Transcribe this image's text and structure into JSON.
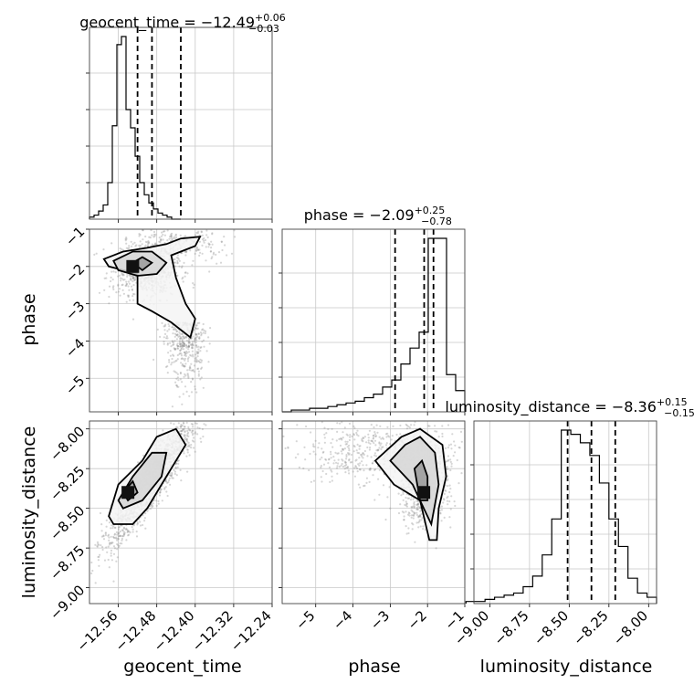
{
  "chart_data": {
    "type": "corner",
    "parameters": [
      "geocent_time",
      "phase",
      "luminosity_distance"
    ],
    "panel_titles": [
      {
        "param": "geocent_time",
        "label": "geocent_time",
        "median": "−12.49",
        "plus": "+0.06",
        "minus": "−0.03"
      },
      {
        "param": "phase",
        "label": "phase",
        "median": "−2.09",
        "plus": "+0.25",
        "minus": "−0.78"
      },
      {
        "param": "luminosity_distance",
        "label": "luminosity_distance",
        "median": "−8.36",
        "plus": "+0.15",
        "minus": "−0.15"
      }
    ],
    "axes": {
      "geocent_time": {
        "range": [
          -12.62,
          -12.24
        ],
        "ticks": [
          -12.56,
          -12.48,
          -12.4,
          -12.32,
          -12.24
        ],
        "tick_labels": [
          "−12.56",
          "−12.48",
          "−12.40",
          "−12.32",
          "−12.24"
        ]
      },
      "phase": {
        "range": [
          -5.9,
          -1.0
        ],
        "ticks": [
          -5,
          -4,
          -3,
          -2,
          -1
        ],
        "tick_labels": [
          "−5",
          "−4",
          "−3",
          "−2",
          "−1"
        ]
      },
      "luminosity_distance": {
        "range": [
          -9.1,
          -7.95
        ],
        "ticks": [
          -9.0,
          -8.75,
          -8.5,
          -8.25,
          -8.0
        ],
        "tick_labels": [
          "−9.00",
          "−8.75",
          "−8.50",
          "−8.25",
          "−8.00"
        ]
      }
    },
    "quantile_lines": {
      "geocent_time": [
        -12.52,
        -12.49,
        -12.43
      ],
      "phase": [
        -2.87,
        -2.09,
        -1.84
      ],
      "luminosity_distance": [
        -8.51,
        -8.36,
        -8.21
      ]
    },
    "histograms": {
      "geocent_time": {
        "edges_start": -12.62,
        "bin_width": 0.0095,
        "counts": [
          1,
          2,
          4,
          7,
          18,
          46,
          86,
          90,
          54,
          45,
          31,
          18,
          12,
          8,
          5,
          3,
          2,
          1,
          0,
          0
        ]
      },
      "phase": {
        "edges_start": -5.9,
        "bin_width": 0.245,
        "counts": [
          0,
          1,
          1,
          2,
          2,
          3,
          4,
          5,
          6,
          8,
          10,
          14,
          18,
          27,
          36,
          45,
          98,
          98,
          21,
          12
        ]
      },
      "luminosity_distance": {
        "edges_start": -9.15,
        "bin_width": 0.06,
        "counts": [
          1,
          1,
          2,
          3,
          4,
          5,
          8,
          13,
          23,
          40,
          82,
          80,
          76,
          70,
          57,
          40,
          27,
          12,
          5,
          3
        ]
      }
    },
    "contours": {
      "geocent_time_vs_phase": [
        [
          [
            -12.59,
            -1.8
          ],
          [
            -12.55,
            -1.6
          ],
          [
            -12.5,
            -1.5
          ],
          [
            -12.46,
            -1.4
          ],
          [
            -12.43,
            -1.25
          ],
          [
            -12.39,
            -1.2
          ],
          [
            -12.4,
            -1.45
          ],
          [
            -12.45,
            -1.7
          ],
          [
            -12.44,
            -2.3
          ],
          [
            -12.42,
            -3.0
          ],
          [
            -12.4,
            -3.4
          ],
          [
            -12.41,
            -3.9
          ],
          [
            -12.45,
            -3.5
          ],
          [
            -12.49,
            -3.2
          ],
          [
            -12.52,
            -3.0
          ],
          [
            -12.52,
            -2.2
          ],
          [
            -12.58,
            -2.0
          ],
          [
            -12.59,
            -1.8
          ]
        ],
        [
          [
            -12.57,
            -1.85
          ],
          [
            -12.53,
            -1.6
          ],
          [
            -12.49,
            -1.6
          ],
          [
            -12.46,
            -1.9
          ],
          [
            -12.48,
            -2.2
          ],
          [
            -12.52,
            -2.25
          ],
          [
            -12.56,
            -2.1
          ],
          [
            -12.57,
            -1.85
          ]
        ],
        [
          [
            -12.53,
            -1.9
          ],
          [
            -12.51,
            -1.75
          ],
          [
            -12.49,
            -1.9
          ],
          [
            -12.51,
            -2.1
          ],
          [
            -12.53,
            -1.9
          ]
        ]
      ],
      "geocent_time_vs_luminosity_distance": [
        [
          [
            -12.58,
            -8.55
          ],
          [
            -12.56,
            -8.35
          ],
          [
            -12.51,
            -8.2
          ],
          [
            -12.48,
            -8.05
          ],
          [
            -12.44,
            -8.0
          ],
          [
            -12.42,
            -8.1
          ],
          [
            -12.46,
            -8.3
          ],
          [
            -12.5,
            -8.5
          ],
          [
            -12.53,
            -8.6
          ],
          [
            -12.57,
            -8.6
          ],
          [
            -12.58,
            -8.55
          ]
        ],
        [
          [
            -12.56,
            -8.45
          ],
          [
            -12.53,
            -8.3
          ],
          [
            -12.49,
            -8.15
          ],
          [
            -12.46,
            -8.15
          ],
          [
            -12.47,
            -8.3
          ],
          [
            -12.51,
            -8.45
          ],
          [
            -12.55,
            -8.5
          ],
          [
            -12.56,
            -8.45
          ]
        ],
        [
          [
            -12.55,
            -8.4
          ],
          [
            -12.53,
            -8.33
          ],
          [
            -12.52,
            -8.4
          ],
          [
            -12.54,
            -8.45
          ],
          [
            -12.55,
            -8.4
          ]
        ]
      ],
      "phase_vs_luminosity_distance": [
        [
          [
            -3.4,
            -8.2
          ],
          [
            -2.7,
            -8.05
          ],
          [
            -2.2,
            -8.0
          ],
          [
            -1.6,
            -8.1
          ],
          [
            -1.5,
            -8.3
          ],
          [
            -1.7,
            -8.5
          ],
          [
            -1.75,
            -8.7
          ],
          [
            -1.95,
            -8.7
          ],
          [
            -2.2,
            -8.45
          ],
          [
            -2.9,
            -8.35
          ],
          [
            -3.4,
            -8.2
          ]
        ],
        [
          [
            -3.0,
            -8.2
          ],
          [
            -2.6,
            -8.1
          ],
          [
            -2.2,
            -8.05
          ],
          [
            -1.8,
            -8.15
          ],
          [
            -1.7,
            -8.35
          ],
          [
            -1.9,
            -8.6
          ],
          [
            -2.1,
            -8.5
          ],
          [
            -2.4,
            -8.35
          ],
          [
            -3.0,
            -8.2
          ]
        ],
        [
          [
            -2.35,
            -8.25
          ],
          [
            -2.15,
            -8.2
          ],
          [
            -2.0,
            -8.3
          ],
          [
            -2.0,
            -8.45
          ],
          [
            -2.2,
            -8.45
          ],
          [
            -2.35,
            -8.25
          ]
        ]
      ]
    },
    "density_peaks": {
      "geocent_time_vs_phase": [
        [
          -12.53,
          -2.0
        ]
      ],
      "geocent_time_vs_luminosity_distance": [
        [
          -12.54,
          -8.4
        ]
      ],
      "phase_vs_luminosity_distance": [
        [
          -2.1,
          -8.4
        ]
      ]
    },
    "grid": true
  }
}
